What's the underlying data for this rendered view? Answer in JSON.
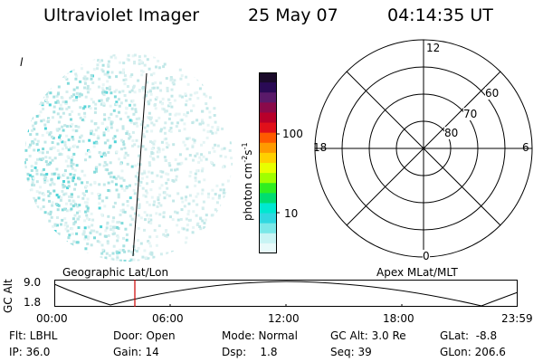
{
  "header": {
    "instrument": "Ultraviolet Imager",
    "date": "25 May 07",
    "time": "04:14:35 UT"
  },
  "image_panel": {
    "corner_mark": "l"
  },
  "colorbar": {
    "label": "photon cm",
    "label_sup1": "-2",
    "label_mid": "s",
    "label_sup2": "-1",
    "ticks": [
      "100",
      "10"
    ],
    "colors": [
      "#1a0a2a",
      "#2a0a55",
      "#5a1a6a",
      "#8a0a4a",
      "#b8002a",
      "#e0101a",
      "#ff5a00",
      "#ff9a00",
      "#ffd000",
      "#e8ff00",
      "#a0ff00",
      "#30ee20",
      "#00dd70",
      "#00e8d0",
      "#30d8e0",
      "#7ae8e8",
      "#c8f4f4",
      "#e8fafa"
    ]
  },
  "polar_plot": {
    "mlt_labels": {
      "top": "12",
      "left": "18",
      "right": "6",
      "bottom": "0"
    },
    "lat_labels": [
      "60",
      "70",
      "80"
    ]
  },
  "altitude_plot": {
    "y_label": "GC Alt",
    "y_ticks": [
      "9.0",
      "1.8"
    ],
    "left_title": "Geographic Lat/Lon",
    "right_title": "Apex MLat/MLT",
    "x_ticks": [
      "00:00",
      "06:00",
      "12:00",
      "18:00",
      "23:59"
    ],
    "marker_color": "#cc0000"
  },
  "info": {
    "row1": [
      "Flt: LBHL",
      "Door: Open",
      "Mode: Normal",
      "GC Alt: 3.0 Re",
      "GLat:  -8.8"
    ],
    "row2": [
      "IP: 36.0",
      "Gain: 14",
      "Dsp:    1.8",
      "Seq: 39",
      "GLon: 206.6"
    ]
  }
}
